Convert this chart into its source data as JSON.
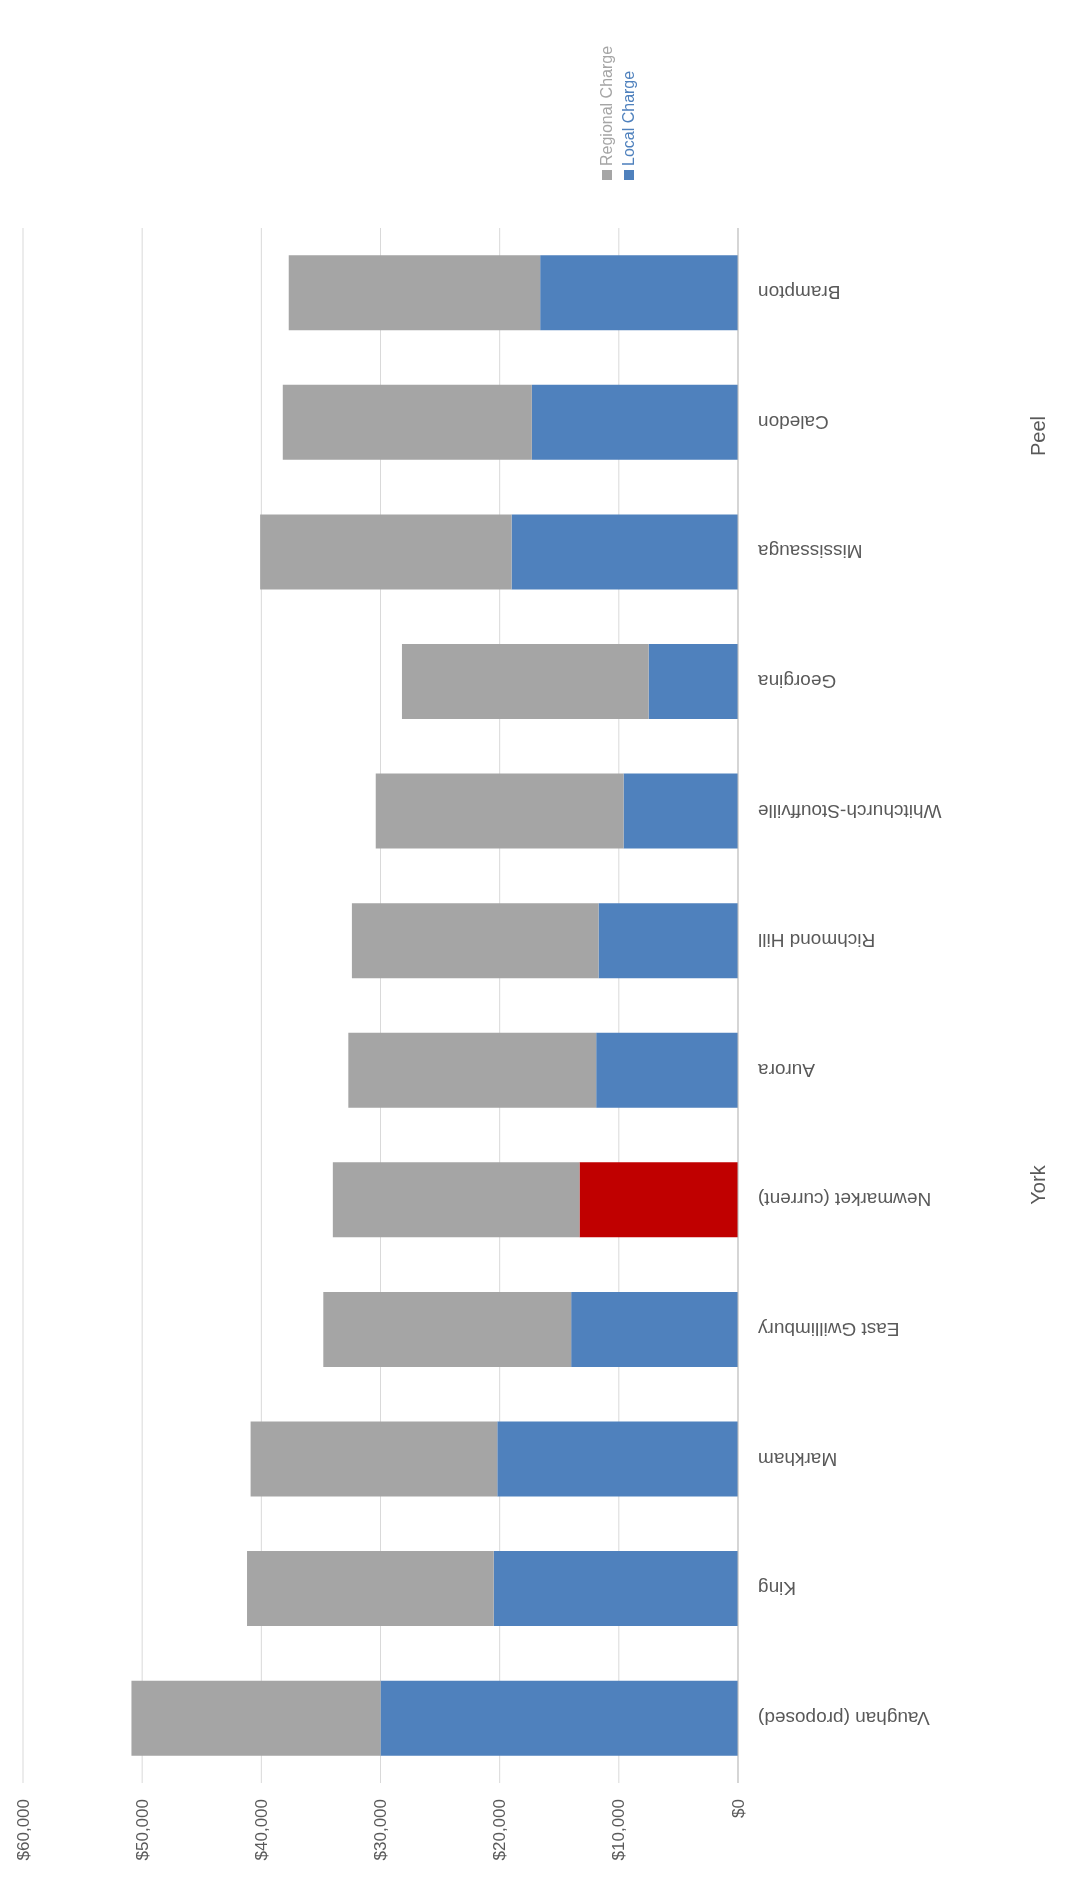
{
  "chart_data": {
    "type": "bar",
    "stacked": true,
    "orientation": "horizontal",
    "categories": [
      "Brampton",
      "Caledon",
      "Mississauga",
      "Georgina",
      "Whitchurch-Stouffville",
      "Richmond Hill",
      "Aurora",
      "Newmarket (current)",
      "East Gwillimbury",
      "Markham",
      "King",
      "Vaughan (proposed)"
    ],
    "series": [
      {
        "name": "Local Charge",
        "color": "#4f81bd",
        "colors": [
          "#4f81bd",
          "#4f81bd",
          "#4f81bd",
          "#4f81bd",
          "#4f81bd",
          "#4f81bd",
          "#4f81bd",
          "#c00000",
          "#4f81bd",
          "#4f81bd",
          "#4f81bd",
          "#4f81bd"
        ],
        "values": [
          16600,
          17300,
          19000,
          7500,
          9600,
          11700,
          11900,
          13300,
          14000,
          20200,
          20500,
          30000
        ]
      },
      {
        "name": "Regional Charge",
        "color": "#a5a5a5",
        "values": [
          21100,
          20900,
          21100,
          20700,
          20800,
          20700,
          20800,
          20700,
          20800,
          20700,
          20700,
          20900
        ]
      }
    ],
    "xlim": [
      60000,
      0
    ],
    "xticks": [
      {
        "value": 0,
        "label": "$0"
      },
      {
        "value": 10000,
        "label": "$10,000"
      },
      {
        "value": 20000,
        "label": "$20,000"
      },
      {
        "value": 30000,
        "label": "$30,000"
      },
      {
        "value": 40000,
        "label": "$40,000"
      },
      {
        "value": 50000,
        "label": "$50,000"
      },
      {
        "value": 60000,
        "label": "$60,000"
      }
    ],
    "grid": "x",
    "legend": "top",
    "annotations": [
      "Peel",
      "York"
    ]
  }
}
